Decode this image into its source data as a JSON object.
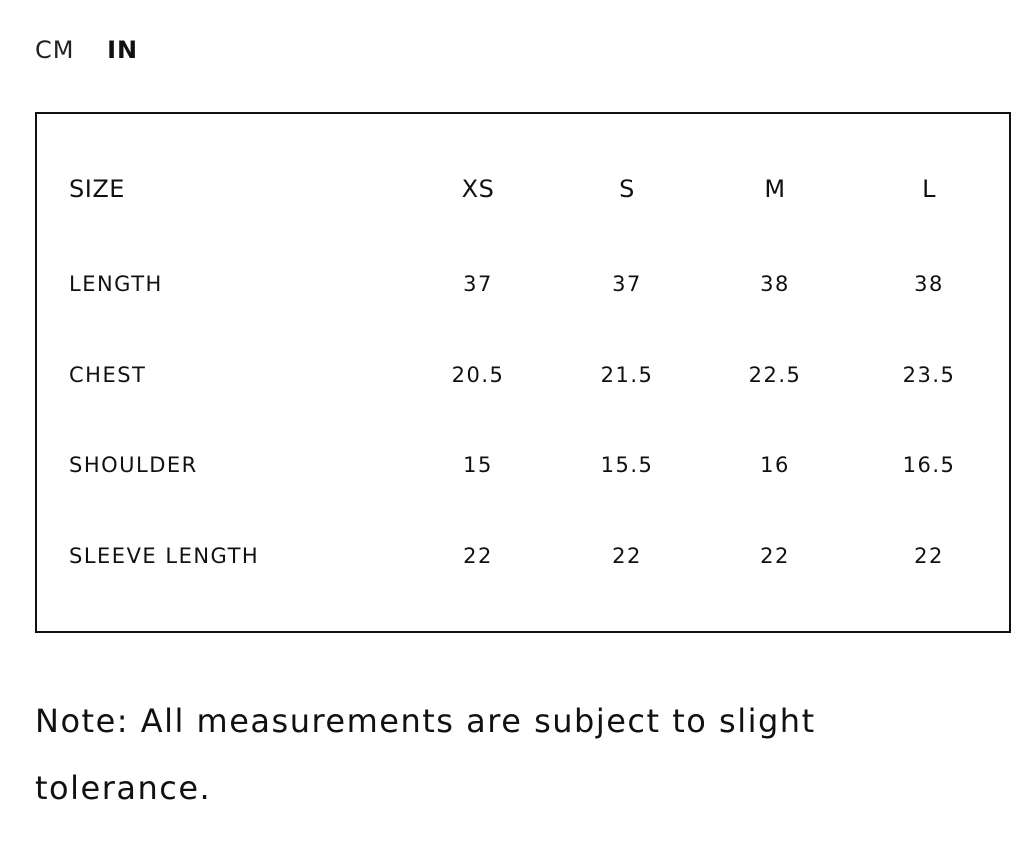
{
  "units": {
    "options": [
      "CM",
      "IN"
    ],
    "selected": "IN"
  },
  "table": {
    "header": {
      "label": "SIZE",
      "sizes": [
        "XS",
        "S",
        "M",
        "L"
      ]
    },
    "rows": [
      {
        "label": "LENGTH",
        "values": [
          "37",
          "37",
          "38",
          "38"
        ]
      },
      {
        "label": "CHEST",
        "values": [
          "20.5",
          "21.5",
          "22.5",
          "23.5"
        ]
      },
      {
        "label": "SHOULDER",
        "values": [
          "15",
          "15.5",
          "16",
          "16.5"
        ]
      },
      {
        "label": "SLEEVE LENGTH",
        "values": [
          "22",
          "22",
          "22",
          "22"
        ]
      }
    ]
  },
  "note": "Note: All measurements are subject to slight tolerance."
}
